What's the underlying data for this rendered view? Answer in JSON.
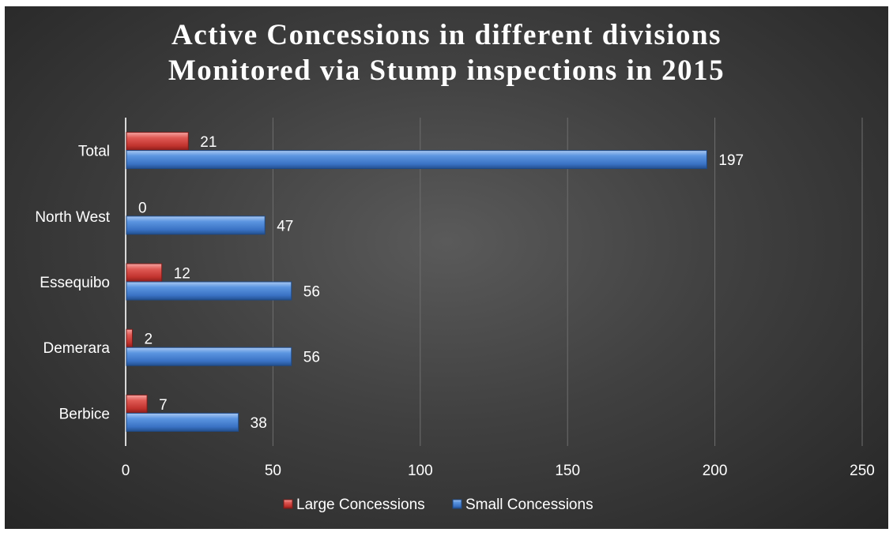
{
  "chart_data": {
    "type": "bar",
    "orientation": "horizontal",
    "title_lines": [
      "Active Concessions in different divisions",
      "Monitored via Stump inspections in 2015"
    ],
    "categories": [
      "Berbice",
      "Demerara",
      "Essequibo",
      "North West",
      "Total"
    ],
    "series": [
      {
        "name": "Large Concessions",
        "values": [
          7,
          2,
          12,
          0,
          21
        ],
        "color": "#d9534f"
      },
      {
        "name": "Small Concessions",
        "values": [
          38,
          56,
          56,
          47,
          197
        ],
        "color": "#4a86d6"
      }
    ],
    "xlim": [
      0,
      250
    ],
    "xticks": [
      0,
      50,
      100,
      150,
      200,
      250
    ],
    "grid": true,
    "legend_position": "bottom",
    "background": "#404040"
  }
}
